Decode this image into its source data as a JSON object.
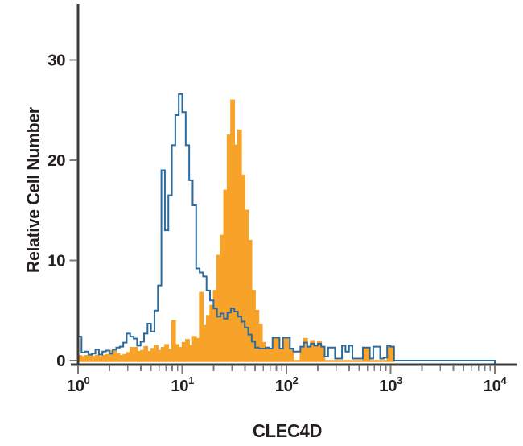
{
  "chart_data": {
    "type": "histogram",
    "title": "",
    "xlabel": "CLEC4D",
    "ylabel": "Relative Cell Number",
    "x_scale": "log10",
    "x_range_exponents": [
      0,
      4
    ],
    "x_tick_exponents": [
      0,
      1,
      2,
      3,
      4
    ],
    "x_tick_base": "10",
    "y_ticks": [
      0,
      10,
      20,
      30
    ],
    "y_tick_labels": [
      "0",
      "10",
      "20",
      "30"
    ],
    "ylim": [
      0,
      34
    ],
    "grid": false,
    "legend": "none",
    "bins_per_decade": 30,
    "series": [
      {
        "name": "orange-filled-histogram",
        "style": "filled",
        "color": "#f7a329",
        "values": [
          0.5,
          0.4,
          0.5,
          0.6,
          0.4,
          0.5,
          0.4,
          0.5,
          0.6,
          1.0,
          1.0,
          0.7,
          0.5,
          0.6,
          0.8,
          1.3,
          1.3,
          0.9,
          1.0,
          1.4,
          0.9,
          1.2,
          1.5,
          1.0,
          1.3,
          1.6,
          1.1,
          4.0,
          1.6,
          1.3,
          1.8,
          2.1,
          1.5,
          2.4,
          2.2,
          6.8,
          3.5,
          4.5,
          5.5,
          7.0,
          10.5,
          12.5,
          17.0,
          22.5,
          26.0,
          21.5,
          23.0,
          18.5,
          15.0,
          12.0,
          7.0,
          5.0,
          3.6,
          1.8,
          1.2,
          1.2,
          2.2,
          2.2,
          1.1,
          2.2,
          2.2,
          1.1,
          0,
          0,
          1.3,
          2.2,
          1.3,
          2.0,
          1.4,
          1.9,
          1.3,
          0,
          0,
          0,
          0,
          0,
          0,
          0,
          0,
          0,
          0,
          0,
          1.3,
          1.3,
          0,
          0,
          0,
          0,
          0,
          1.4,
          1.4,
          0,
          0,
          0,
          0,
          0,
          0,
          0,
          0,
          0,
          0,
          0,
          0,
          0,
          0,
          0,
          0,
          0,
          0,
          0,
          0,
          0,
          0,
          0,
          0,
          0,
          0,
          0,
          0,
          0
        ]
      },
      {
        "name": "blue-open-histogram",
        "style": "open",
        "color": "#2b6a9f",
        "values": [
          2.4,
          0.8,
          0.9,
          0.6,
          0.7,
          1.1,
          0.6,
          0.9,
          1.0,
          0.7,
          1.1,
          1.3,
          1.4,
          1.8,
          2.7,
          2.4,
          2.2,
          1.5,
          1.9,
          2.7,
          3.7,
          2.9,
          5.0,
          7.5,
          19.0,
          13.0,
          16.5,
          21.5,
          24.5,
          26.6,
          24.8,
          21.5,
          18.0,
          15.5,
          9.2,
          8.8,
          8.4,
          7.0,
          6.0,
          5.2,
          4.4,
          4.7,
          4.2,
          4.8,
          5.2,
          4.9,
          4.4,
          3.9,
          3.3,
          2.6,
          1.9,
          1.3,
          1.2,
          1.2,
          1.3,
          1.2,
          2.3,
          2.3,
          1.2,
          2.3,
          2.3,
          1.2,
          0.9,
          0.9,
          1.4,
          1.8,
          1.4,
          1.7,
          1.5,
          1.7,
          1.4,
          0.4,
          1.3,
          1.3,
          0.2,
          0.2,
          1.5,
          0.9,
          1.5,
          0.2,
          0.2,
          0.2,
          1.3,
          1.3,
          0.2,
          1.4,
          1.4,
          0.2,
          0.3,
          1.5,
          1.4,
          0,
          0,
          0,
          0,
          0,
          0,
          0,
          0,
          0,
          0,
          0,
          0,
          0,
          0,
          0,
          0,
          0,
          0,
          0,
          0,
          0,
          0,
          0,
          0,
          0,
          0,
          0,
          0,
          0
        ]
      }
    ],
    "colors": {
      "axis": "#3b3b3c",
      "tick": "#7b7b7b",
      "text": "#231f20",
      "background": "#ffffff",
      "stained_fill": "#f7a329",
      "control_line": "#2b6a9f"
    }
  }
}
